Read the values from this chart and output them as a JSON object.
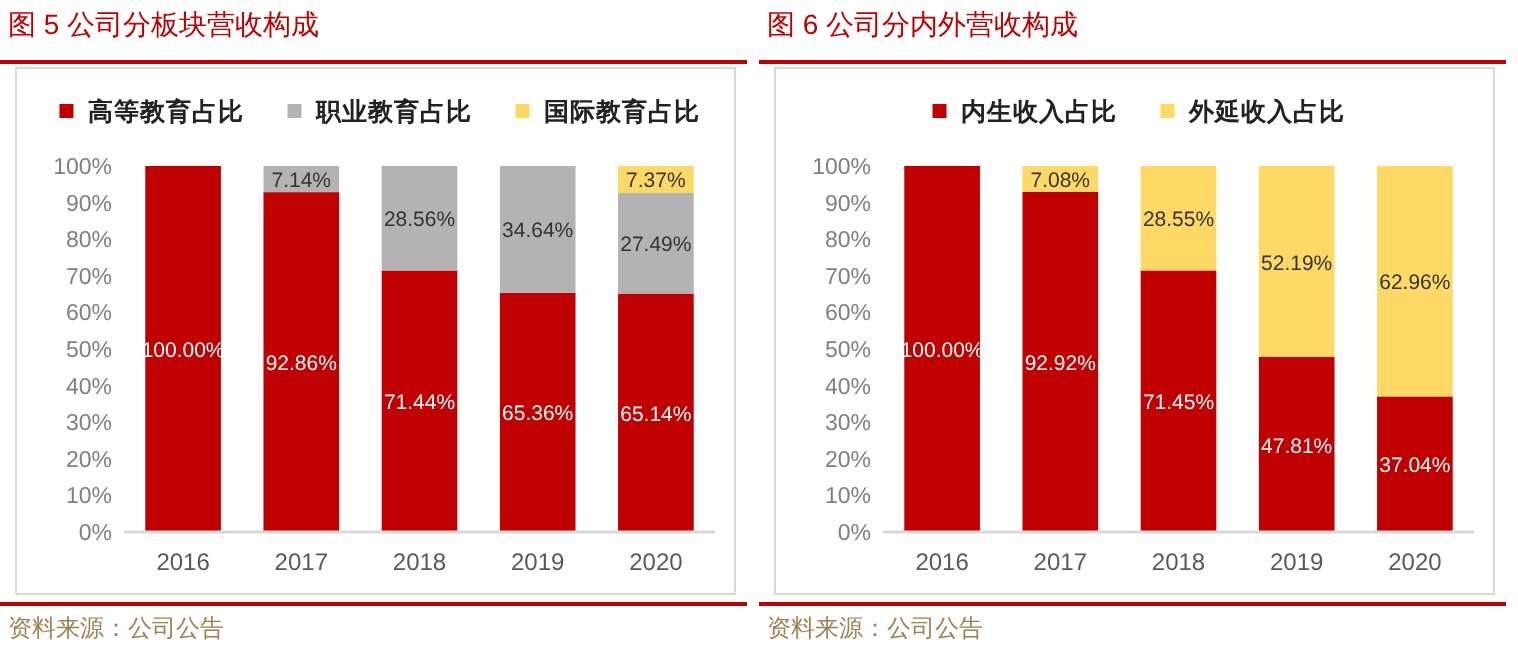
{
  "chart_data": [
    {
      "type": "bar",
      "stacked": true,
      "title": "图 5 公司分板块营收构成",
      "categories": [
        "2016",
        "2017",
        "2018",
        "2019",
        "2020"
      ],
      "legend": "top",
      "ylim": [
        0,
        100
      ],
      "yticks": [
        {
          "value": 0,
          "label": "0%"
        },
        {
          "value": 10,
          "label": "10%"
        },
        {
          "value": 20,
          "label": "20%"
        },
        {
          "value": 30,
          "label": "30%"
        },
        {
          "value": 40,
          "label": "40%"
        },
        {
          "value": 50,
          "label": "50%"
        },
        {
          "value": 60,
          "label": "60%"
        },
        {
          "value": 70,
          "label": "70%"
        },
        {
          "value": 80,
          "label": "80%"
        },
        {
          "value": 90,
          "label": "90%"
        },
        {
          "value": 100,
          "label": "100%"
        }
      ],
      "series": [
        {
          "name": "高等教育占比",
          "color": "#c00000",
          "values": [
            100,
            92.86,
            71.44,
            65.36,
            65.14
          ],
          "value_labels": [
            "100.00%",
            "92.86%",
            "71.44%",
            "65.36%",
            "65.14%"
          ]
        },
        {
          "name": "职业教育占比",
          "color": "#b3b3b3",
          "values": [
            null,
            7.14,
            28.56,
            34.64,
            27.49
          ],
          "value_labels": [
            null,
            "7.14%",
            "28.56%",
            "34.64%",
            "27.49%"
          ]
        },
        {
          "name": "国际教育占比",
          "color": "#ffd966",
          "values": [
            null,
            null,
            null,
            null,
            7.37
          ],
          "value_labels": [
            null,
            null,
            null,
            null,
            "7.37%"
          ]
        }
      ],
      "annotations": [
        "资料来源：公司公告"
      ]
    },
    {
      "type": "bar",
      "stacked": true,
      "title": "图 6 公司分内外营收构成",
      "categories": [
        "2016",
        "2017",
        "2018",
        "2019",
        "2020"
      ],
      "legend": "top",
      "ylim": [
        0,
        100
      ],
      "yticks": [
        {
          "value": 0,
          "label": "0%"
        },
        {
          "value": 10,
          "label": "10%"
        },
        {
          "value": 20,
          "label": "20%"
        },
        {
          "value": 30,
          "label": "30%"
        },
        {
          "value": 40,
          "label": "40%"
        },
        {
          "value": 50,
          "label": "50%"
        },
        {
          "value": 60,
          "label": "60%"
        },
        {
          "value": 70,
          "label": "70%"
        },
        {
          "value": 80,
          "label": "80%"
        },
        {
          "value": 90,
          "label": "90%"
        },
        {
          "value": 100,
          "label": "100%"
        }
      ],
      "series": [
        {
          "name": "内生收入占比",
          "color": "#c00000",
          "values": [
            100,
            92.92,
            71.45,
            47.81,
            37.04
          ],
          "value_labels": [
            "100.00%",
            "92.92%",
            "71.45%",
            "47.81%",
            "37.04%"
          ]
        },
        {
          "name": "外延收入占比",
          "color": "#ffd966",
          "values": [
            null,
            7.08,
            28.55,
            52.19,
            62.96
          ],
          "value_labels": [
            null,
            "7.08%",
            "28.55%",
            "52.19%",
            "62.96%"
          ]
        }
      ],
      "annotations": [
        "资料来源：公司公告"
      ]
    }
  ]
}
